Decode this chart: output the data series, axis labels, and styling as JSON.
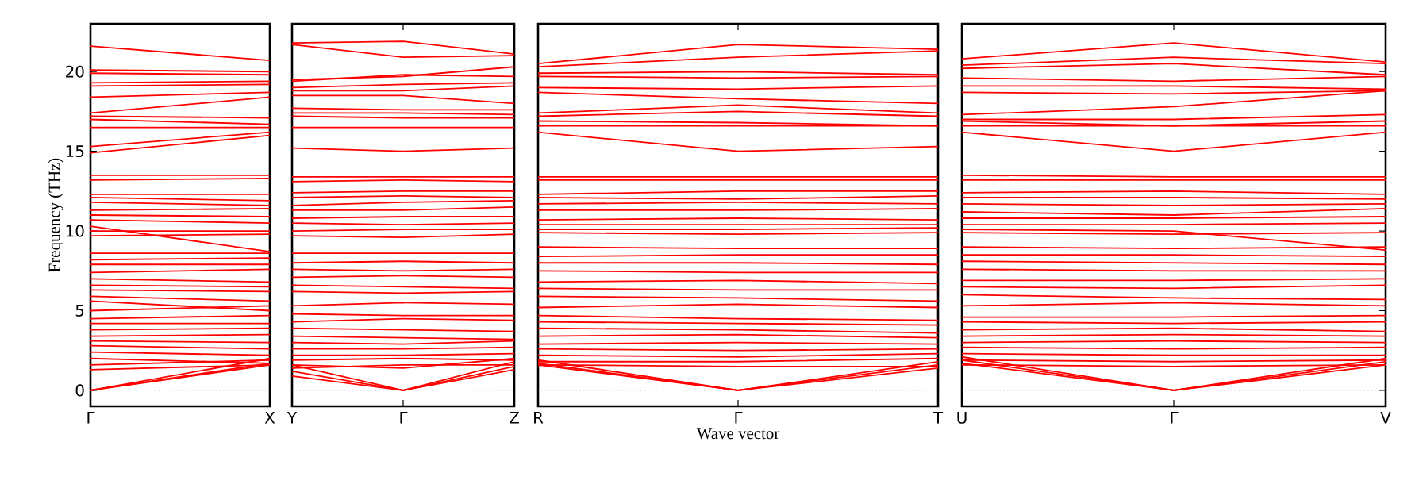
{
  "chart_data": [
    {
      "type": "line",
      "color": "#ff0000",
      "ylabel": "Frequency (THz)",
      "categories": [
        "Γ",
        "X"
      ],
      "ylim": [
        -1,
        23
      ],
      "yticks": [
        0,
        5,
        10,
        15,
        20
      ],
      "ref_lines": [
        {
          "axis": "y",
          "value": 0,
          "color": "#6666ff",
          "line_style": "dotted"
        }
      ],
      "series": [
        {
          "values": [
            21.6,
            20.7
          ]
        },
        {
          "values": [
            20.1,
            20.0
          ]
        },
        {
          "values": [
            19.9,
            19.8
          ]
        },
        {
          "values": [
            19.3,
            19.4
          ]
        },
        {
          "values": [
            19.1,
            19.2
          ]
        },
        {
          "values": [
            18.4,
            18.7
          ]
        },
        {
          "values": [
            17.4,
            18.4
          ]
        },
        {
          "values": [
            17.2,
            17.1
          ]
        },
        {
          "values": [
            17.0,
            16.7
          ]
        },
        {
          "values": [
            16.5,
            16.5
          ]
        },
        {
          "values": [
            15.3,
            16.2
          ]
        },
        {
          "values": [
            14.9,
            16.0
          ]
        },
        {
          "values": [
            13.5,
            13.5
          ]
        },
        {
          "values": [
            13.2,
            13.3
          ]
        },
        {
          "values": [
            12.3,
            12.3
          ]
        },
        {
          "values": [
            12.1,
            11.9
          ]
        },
        {
          "values": [
            11.8,
            11.6
          ]
        },
        {
          "values": [
            11.3,
            11.4
          ]
        },
        {
          "values": [
            11.0,
            10.9
          ]
        },
        {
          "values": [
            10.7,
            10.5
          ]
        },
        {
          "values": [
            10.3,
            8.7
          ]
        },
        {
          "values": [
            10.0,
            10.0
          ]
        },
        {
          "values": [
            9.7,
            9.8
          ]
        },
        {
          "values": [
            8.6,
            8.6
          ]
        },
        {
          "values": [
            8.2,
            8.3
          ]
        },
        {
          "values": [
            7.9,
            7.9
          ]
        },
        {
          "values": [
            7.4,
            7.6
          ]
        },
        {
          "values": [
            7.0,
            6.8
          ]
        },
        {
          "values": [
            6.6,
            6.5
          ]
        },
        {
          "values": [
            6.3,
            6.2
          ]
        },
        {
          "values": [
            5.9,
            5.6
          ]
        },
        {
          "values": [
            5.6,
            5.0
          ]
        },
        {
          "values": [
            5.0,
            5.3
          ]
        },
        {
          "values": [
            4.5,
            4.7
          ]
        },
        {
          "values": [
            4.2,
            4.2
          ]
        },
        {
          "values": [
            3.8,
            3.9
          ]
        },
        {
          "values": [
            3.4,
            3.5
          ]
        },
        {
          "values": [
            3.1,
            3.0
          ]
        },
        {
          "values": [
            2.8,
            2.6
          ]
        },
        {
          "values": [
            2.4,
            2.2
          ]
        },
        {
          "values": [
            2.0,
            1.7
          ]
        },
        {
          "values": [
            1.6,
            1.9
          ]
        },
        {
          "values": [
            1.3,
            1.6
          ]
        },
        {
          "values": [
            0,
            1.6
          ]
        },
        {
          "values": [
            0,
            1.7
          ]
        },
        {
          "values": [
            0,
            2.0
          ]
        }
      ]
    },
    {
      "type": "line",
      "color": "#ff0000",
      "categories": [
        "Y",
        "Γ",
        "Z"
      ],
      "ylim": [
        -1,
        23
      ],
      "tick_labels": "x",
      "ref_lines": [
        {
          "axis": "y",
          "value": 0,
          "color": "#6666ff",
          "line_style": "dotted"
        }
      ],
      "series": [
        {
          "values": [
            21.8,
            21.9,
            21.1
          ]
        },
        {
          "values": [
            21.7,
            20.9,
            21.0
          ]
        },
        {
          "values": [
            19.5,
            19.7,
            20.3
          ]
        },
        {
          "values": [
            19.4,
            19.8,
            19.7
          ]
        },
        {
          "values": [
            19.0,
            19.2,
            19.3
          ]
        },
        {
          "values": [
            18.8,
            18.8,
            19.1
          ]
        },
        {
          "values": [
            18.5,
            18.5,
            18.0
          ]
        },
        {
          "values": [
            17.7,
            17.6,
            17.6
          ]
        },
        {
          "values": [
            17.4,
            17.4,
            17.3
          ]
        },
        {
          "values": [
            17.2,
            17.1,
            17.1
          ]
        },
        {
          "values": [
            16.5,
            16.5,
            16.5
          ]
        },
        {
          "values": [
            15.2,
            15.0,
            15.2
          ]
        },
        {
          "values": [
            13.4,
            13.4,
            13.4
          ]
        },
        {
          "values": [
            13.1,
            13.2,
            13.1
          ]
        },
        {
          "values": [
            12.4,
            12.5,
            12.5
          ]
        },
        {
          "values": [
            12.1,
            12.2,
            12.1
          ]
        },
        {
          "values": [
            11.6,
            11.8,
            11.9
          ]
        },
        {
          "values": [
            11.3,
            11.3,
            11.5
          ]
        },
        {
          "values": [
            10.8,
            10.9,
            10.9
          ]
        },
        {
          "values": [
            10.5,
            10.4,
            10.5
          ]
        },
        {
          "values": [
            10.0,
            10.1,
            10.1
          ]
        },
        {
          "values": [
            9.7,
            9.6,
            9.8
          ]
        },
        {
          "values": [
            8.6,
            8.6,
            8.6
          ]
        },
        {
          "values": [
            8.0,
            8.1,
            8.0
          ]
        },
        {
          "values": [
            7.6,
            7.5,
            7.6
          ]
        },
        {
          "values": [
            7.1,
            7.2,
            7.1
          ]
        },
        {
          "values": [
            6.6,
            6.5,
            6.4
          ]
        },
        {
          "values": [
            6.2,
            6.1,
            6.2
          ]
        },
        {
          "values": [
            5.3,
            5.5,
            5.4
          ]
        },
        {
          "values": [
            4.8,
            4.7,
            4.7
          ]
        },
        {
          "values": [
            4.3,
            4.5,
            4.4
          ]
        },
        {
          "values": [
            3.9,
            3.8,
            3.7
          ]
        },
        {
          "values": [
            3.4,
            3.3,
            3.2
          ]
        },
        {
          "values": [
            3.0,
            2.9,
            3.1
          ]
        },
        {
          "values": [
            2.6,
            2.6,
            2.7
          ]
        },
        {
          "values": [
            2.2,
            2.2,
            2.3
          ]
        },
        {
          "values": [
            1.9,
            2.0,
            1.9
          ]
        },
        {
          "values": [
            1.6,
            1.4,
            2.0
          ]
        },
        {
          "values": [
            1.4,
            1.6,
            1.6
          ]
        },
        {
          "values": [
            1.2,
            0,
            1.5
          ]
        },
        {
          "values": [
            0.9,
            0,
            1.3
          ]
        },
        {
          "values": [
            1.6,
            0,
            1.8
          ]
        }
      ]
    },
    {
      "type": "line",
      "color": "#ff0000",
      "xlabel": "Wave vector",
      "categories": [
        "R",
        "Γ",
        "T"
      ],
      "ylim": [
        -1,
        23
      ],
      "tick_labels": "x",
      "ref_lines": [
        {
          "axis": "y",
          "value": 0,
          "color": "#6666ff",
          "line_style": "dotted"
        }
      ],
      "series": [
        {
          "values": [
            20.5,
            21.7,
            21.4
          ]
        },
        {
          "values": [
            20.3,
            20.9,
            21.3
          ]
        },
        {
          "values": [
            19.9,
            20.0,
            19.8
          ]
        },
        {
          "values": [
            19.7,
            19.6,
            19.7
          ]
        },
        {
          "values": [
            19.0,
            18.9,
            19.1
          ]
        },
        {
          "values": [
            18.7,
            18.3,
            18.0
          ]
        },
        {
          "values": [
            17.4,
            17.9,
            17.4
          ]
        },
        {
          "values": [
            17.2,
            17.5,
            17.2
          ]
        },
        {
          "values": [
            16.9,
            16.8,
            16.6
          ]
        },
        {
          "values": [
            16.6,
            16.6,
            16.6
          ]
        },
        {
          "values": [
            16.2,
            15.0,
            15.3
          ]
        },
        {
          "values": [
            13.4,
            13.4,
            13.4
          ]
        },
        {
          "values": [
            13.2,
            13.2,
            13.2
          ]
        },
        {
          "values": [
            12.3,
            12.5,
            12.5
          ]
        },
        {
          "values": [
            12.1,
            12.0,
            12.2
          ]
        },
        {
          "values": [
            11.7,
            11.8,
            11.7
          ]
        },
        {
          "values": [
            11.3,
            11.3,
            11.4
          ]
        },
        {
          "values": [
            10.7,
            10.8,
            10.7
          ]
        },
        {
          "values": [
            10.4,
            10.4,
            10.4
          ]
        },
        {
          "values": [
            10.1,
            10.1,
            10.2
          ]
        },
        {
          "values": [
            9.9,
            9.8,
            9.9
          ]
        },
        {
          "values": [
            9.0,
            8.9,
            8.9
          ]
        },
        {
          "values": [
            8.4,
            8.5,
            8.5
          ]
        },
        {
          "values": [
            8.0,
            8.0,
            7.9
          ]
        },
        {
          "values": [
            7.5,
            7.4,
            7.4
          ]
        },
        {
          "values": [
            6.8,
            6.9,
            6.7
          ]
        },
        {
          "values": [
            6.4,
            6.3,
            6.3
          ]
        },
        {
          "values": [
            5.9,
            5.8,
            5.6
          ]
        },
        {
          "values": [
            5.2,
            5.4,
            5.2
          ]
        },
        {
          "values": [
            4.7,
            4.5,
            4.4
          ]
        },
        {
          "values": [
            4.3,
            4.2,
            4.1
          ]
        },
        {
          "values": [
            3.9,
            3.8,
            3.6
          ]
        },
        {
          "values": [
            3.4,
            3.5,
            3.3
          ]
        },
        {
          "values": [
            2.9,
            3.0,
            2.9
          ]
        },
        {
          "values": [
            2.6,
            2.5,
            2.6
          ]
        },
        {
          "values": [
            2.2,
            2.1,
            2.3
          ]
        },
        {
          "values": [
            1.8,
            1.8,
            2.0
          ]
        },
        {
          "values": [
            1.6,
            1.5,
            1.5
          ]
        },
        {
          "values": [
            1.6,
            0,
            1.4
          ]
        },
        {
          "values": [
            1.7,
            0,
            1.6
          ]
        },
        {
          "values": [
            1.9,
            0,
            1.8
          ]
        }
      ]
    },
    {
      "type": "line",
      "color": "#ff0000",
      "categories": [
        "U",
        "Γ",
        "V"
      ],
      "ylim": [
        -1,
        23
      ],
      "yticks": [
        0,
        5,
        10,
        15,
        20
      ],
      "tick_labels": "x",
      "ref_lines": [
        {
          "axis": "y",
          "value": 0,
          "color": "#6666ff",
          "line_style": "dotted"
        }
      ],
      "series": [
        {
          "values": [
            20.8,
            21.8,
            20.6
          ]
        },
        {
          "values": [
            20.4,
            20.9,
            20.5
          ]
        },
        {
          "values": [
            20.2,
            20.5,
            19.8
          ]
        },
        {
          "values": [
            19.6,
            19.4,
            19.7
          ]
        },
        {
          "values": [
            19.1,
            19.1,
            18.9
          ]
        },
        {
          "values": [
            18.7,
            18.6,
            18.8
          ]
        },
        {
          "values": [
            17.3,
            17.8,
            18.8
          ]
        },
        {
          "values": [
            17.0,
            17.0,
            17.3
          ]
        },
        {
          "values": [
            16.9,
            16.6,
            16.9
          ]
        },
        {
          "values": [
            16.6,
            16.6,
            16.6
          ]
        },
        {
          "values": [
            16.2,
            15.0,
            16.2
          ]
        },
        {
          "values": [
            13.5,
            13.4,
            13.4
          ]
        },
        {
          "values": [
            13.2,
            13.2,
            13.2
          ]
        },
        {
          "values": [
            12.4,
            12.5,
            12.3
          ]
        },
        {
          "values": [
            12.1,
            12.1,
            12.0
          ]
        },
        {
          "values": [
            11.7,
            11.6,
            11.7
          ]
        },
        {
          "values": [
            11.2,
            11.0,
            11.4
          ]
        },
        {
          "values": [
            10.8,
            10.8,
            10.9
          ]
        },
        {
          "values": [
            10.4,
            10.4,
            10.5
          ]
        },
        {
          "values": [
            10.1,
            10.0,
            8.8
          ]
        },
        {
          "values": [
            9.9,
            9.8,
            9.9
          ]
        },
        {
          "values": [
            9.0,
            8.9,
            9.0
          ]
        },
        {
          "values": [
            8.5,
            8.5,
            8.4
          ]
        },
        {
          "values": [
            8.1,
            8.0,
            7.9
          ]
        },
        {
          "values": [
            7.6,
            7.5,
            7.5
          ]
        },
        {
          "values": [
            6.9,
            6.9,
            7.0
          ]
        },
        {
          "values": [
            6.5,
            6.4,
            6.6
          ]
        },
        {
          "values": [
            6.0,
            5.8,
            5.7
          ]
        },
        {
          "values": [
            5.3,
            5.5,
            5.3
          ]
        },
        {
          "values": [
            4.6,
            4.6,
            4.7
          ]
        },
        {
          "values": [
            4.3,
            4.2,
            4.3
          ]
        },
        {
          "values": [
            3.8,
            3.9,
            3.7
          ]
        },
        {
          "values": [
            3.4,
            3.5,
            3.4
          ]
        },
        {
          "values": [
            3.0,
            3.1,
            3.0
          ]
        },
        {
          "values": [
            2.7,
            2.6,
            2.7
          ]
        },
        {
          "values": [
            2.3,
            2.2,
            2.2
          ]
        },
        {
          "values": [
            1.9,
            1.8,
            1.9
          ]
        },
        {
          "values": [
            1.6,
            1.5,
            1.6
          ]
        },
        {
          "values": [
            1.7,
            0,
            1.6
          ]
        },
        {
          "values": [
            1.9,
            0,
            1.8
          ]
        },
        {
          "values": [
            2.1,
            0,
            2.0
          ]
        }
      ]
    }
  ]
}
